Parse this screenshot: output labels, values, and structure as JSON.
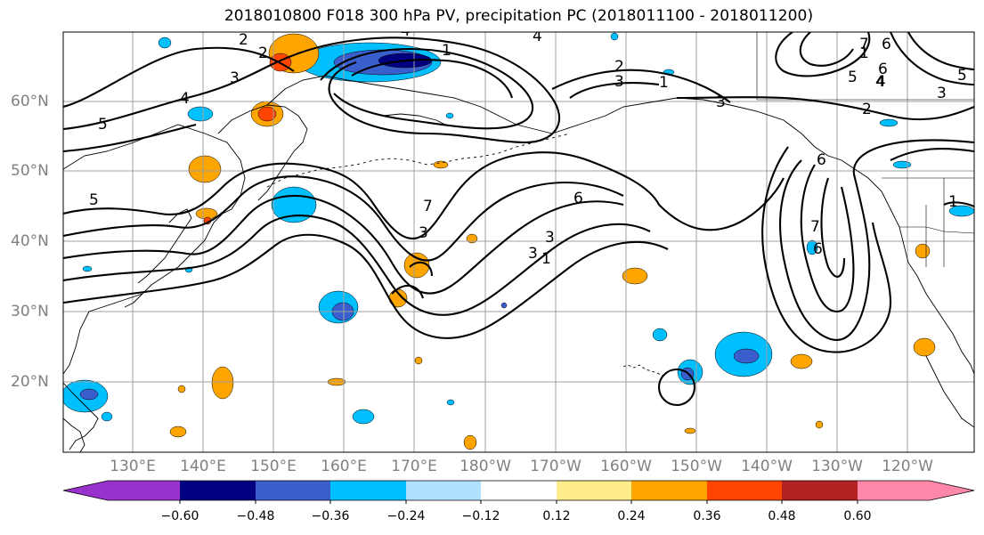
{
  "title": "2018010800 F018 300 hPa PV, precipitation PC (2018011100 - 2018011200)",
  "lat_labels": [
    "60°N",
    "50°N",
    "40°N",
    "30°N",
    "20°N"
  ],
  "lon_labels": [
    "130°E",
    "140°E",
    "150°E",
    "160°E",
    "170°E",
    "180°W",
    "170°W",
    "160°W",
    "150°W",
    "140°W",
    "130°W",
    "120°W"
  ],
  "colorbar": {
    "levels": [
      "-0.60",
      "-0.48",
      "-0.36",
      "-0.24",
      "-0.12",
      "0.12",
      "0.24",
      "0.36",
      "0.48",
      "0.60"
    ],
    "colors": [
      "#9932cc",
      "#000080",
      "#3a5fcd",
      "#00bfff",
      "#b0e2ff",
      "#ffffff",
      "#ffec8b",
      "#ffa500",
      "#ff4500",
      "#b22222",
      "#ff88aa"
    ]
  },
  "contour_labels": [
    "2",
    "2",
    "3",
    "4",
    "5",
    "5",
    "3",
    "1",
    "4",
    "6",
    "1",
    "3",
    "2",
    "7",
    "3",
    "1",
    "3",
    "6",
    "4",
    "1",
    "7",
    "6",
    "5",
    "4",
    "3",
    "5",
    "2",
    "1",
    "6",
    "7",
    "6",
    "3",
    "4"
  ],
  "colors": {
    "contour": "#000000",
    "grid": "#a0a0a0",
    "coast": "#000000",
    "axis_label": "#808080"
  }
}
